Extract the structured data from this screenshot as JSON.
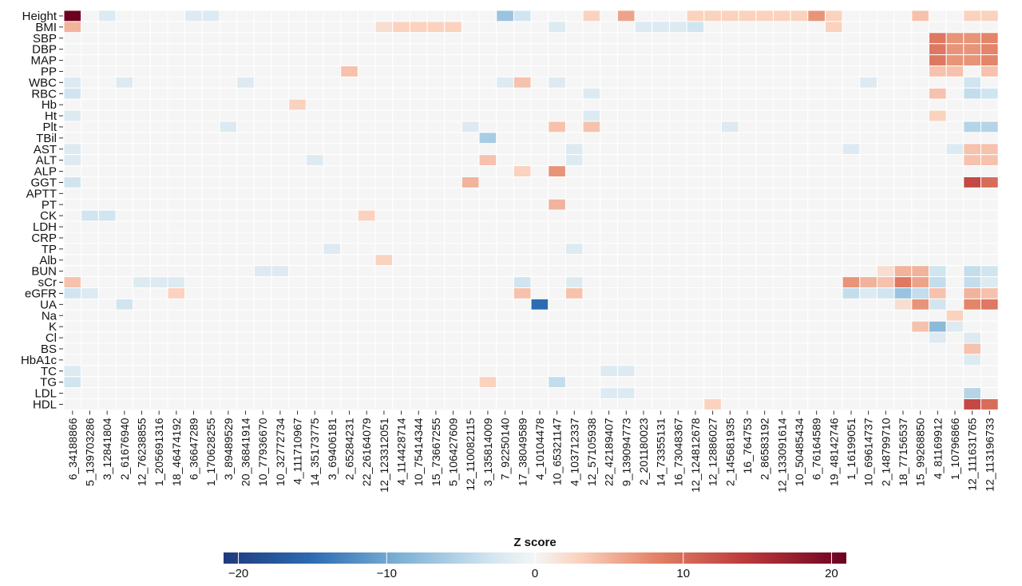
{
  "chart_data": {
    "type": "heatmap",
    "title": "",
    "rows": [
      "Height",
      "BMI",
      "SBP",
      "DBP",
      "MAP",
      "PP",
      "WBC",
      "RBC",
      "Hb",
      "Ht",
      "Plt",
      "TBil",
      "AST",
      "ALT",
      "ALP",
      "GGT",
      "APTT",
      "PT",
      "CK",
      "LDH",
      "CRP",
      "TP",
      "Alb",
      "BUN",
      "sCr",
      "eGFR",
      "UA",
      "Na",
      "K",
      "Cl",
      "BS",
      "HbA1c",
      "TC",
      "TG",
      "LDL",
      "HDL"
    ],
    "columns": [
      "6_34188866",
      "5_139703286",
      "3_12841804",
      "2_61676940",
      "12_76238855",
      "1_205691316",
      "18_46474192",
      "6_36647289",
      "1_170628255",
      "3_89489529",
      "20_36841914",
      "10_77936670",
      "10_32772734",
      "4_111710967",
      "14_35173775",
      "3_69406181",
      "2_65284231",
      "22_26164079",
      "12_123312051",
      "4_114428714",
      "10_75414344",
      "15_73667255",
      "5_106427609",
      "12_110082115",
      "3_135814009",
      "7_92250140",
      "17_38049589",
      "4_10104478",
      "10_65321147",
      "4_103712337",
      "12_57105938",
      "22_42189407",
      "9_139094773",
      "2_201180023",
      "14_73355131",
      "16_73048367",
      "12_124812678",
      "12_12886027",
      "2_145681935",
      "16_764753",
      "2_86583192",
      "12_133091614",
      "10_50485434",
      "6_76164589",
      "19_48142746",
      "1_16199051",
      "10_69614737",
      "2_148799710",
      "18_77156537",
      "15_99268850",
      "4_81169912",
      "1_10796866",
      "12_111631765",
      "12_113196733"
    ],
    "cells": [
      [
        0,
        0,
        21
      ],
      [
        0,
        2,
        -2
      ],
      [
        0,
        7,
        -2
      ],
      [
        0,
        8,
        -2
      ],
      [
        0,
        25,
        -7
      ],
      [
        0,
        26,
        -3
      ],
      [
        0,
        30,
        3
      ],
      [
        0,
        32,
        6
      ],
      [
        0,
        36,
        3
      ],
      [
        0,
        37,
        3
      ],
      [
        0,
        38,
        3
      ],
      [
        0,
        39,
        3
      ],
      [
        0,
        40,
        3
      ],
      [
        0,
        41,
        3
      ],
      [
        0,
        42,
        3
      ],
      [
        0,
        43,
        7
      ],
      [
        0,
        44,
        3
      ],
      [
        0,
        49,
        4
      ],
      [
        0,
        52,
        3
      ],
      [
        0,
        53,
        3
      ],
      [
        1,
        0,
        5
      ],
      [
        1,
        18,
        2
      ],
      [
        1,
        19,
        3
      ],
      [
        1,
        20,
        3
      ],
      [
        1,
        21,
        3
      ],
      [
        1,
        22,
        3
      ],
      [
        1,
        28,
        -2
      ],
      [
        1,
        33,
        -2
      ],
      [
        1,
        34,
        -2
      ],
      [
        1,
        35,
        -2
      ],
      [
        1,
        36,
        -3
      ],
      [
        1,
        44,
        3
      ],
      [
        2,
        50,
        9
      ],
      [
        2,
        51,
        7
      ],
      [
        2,
        52,
        7
      ],
      [
        2,
        53,
        8
      ],
      [
        3,
        50,
        9
      ],
      [
        3,
        51,
        7
      ],
      [
        3,
        52,
        7
      ],
      [
        3,
        53,
        8
      ],
      [
        4,
        50,
        9
      ],
      [
        4,
        51,
        7
      ],
      [
        4,
        52,
        7
      ],
      [
        4,
        53,
        8
      ],
      [
        5,
        16,
        4
      ],
      [
        5,
        50,
        4
      ],
      [
        5,
        51,
        4
      ],
      [
        5,
        53,
        4
      ],
      [
        6,
        0,
        -2
      ],
      [
        6,
        3,
        -2
      ],
      [
        6,
        10,
        -2
      ],
      [
        6,
        25,
        -2
      ],
      [
        6,
        26,
        4
      ],
      [
        6,
        28,
        -2
      ],
      [
        6,
        46,
        -2
      ],
      [
        6,
        52,
        -3
      ],
      [
        7,
        0,
        -3
      ],
      [
        7,
        30,
        -2
      ],
      [
        7,
        50,
        4
      ],
      [
        7,
        52,
        -4
      ],
      [
        7,
        53,
        -3
      ],
      [
        8,
        13,
        3
      ],
      [
        9,
        0,
        -2
      ],
      [
        9,
        30,
        -2
      ],
      [
        9,
        50,
        3
      ],
      [
        10,
        9,
        -2
      ],
      [
        10,
        23,
        -2
      ],
      [
        10,
        28,
        4
      ],
      [
        10,
        30,
        4
      ],
      [
        10,
        38,
        -2
      ],
      [
        10,
        52,
        -5
      ],
      [
        10,
        53,
        -5
      ],
      [
        11,
        24,
        -6
      ],
      [
        12,
        0,
        -2
      ],
      [
        12,
        29,
        -2
      ],
      [
        12,
        45,
        -2
      ],
      [
        12,
        51,
        -2
      ],
      [
        12,
        52,
        4
      ],
      [
        12,
        53,
        4
      ],
      [
        13,
        0,
        -2
      ],
      [
        13,
        14,
        -2
      ],
      [
        13,
        24,
        4
      ],
      [
        13,
        29,
        -2
      ],
      [
        13,
        52,
        4
      ],
      [
        13,
        53,
        4
      ],
      [
        14,
        26,
        3
      ],
      [
        14,
        28,
        7
      ],
      [
        15,
        0,
        -3
      ],
      [
        15,
        23,
        5
      ],
      [
        15,
        52,
        13
      ],
      [
        15,
        53,
        10
      ],
      [
        17,
        28,
        5
      ],
      [
        18,
        1,
        -3
      ],
      [
        18,
        2,
        -3
      ],
      [
        18,
        17,
        3
      ],
      [
        21,
        15,
        -2
      ],
      [
        21,
        29,
        -2
      ],
      [
        22,
        18,
        3
      ],
      [
        23,
        11,
        -2
      ],
      [
        23,
        12,
        -2
      ],
      [
        23,
        47,
        2
      ],
      [
        23,
        48,
        5
      ],
      [
        23,
        49,
        5
      ],
      [
        23,
        50,
        -3
      ],
      [
        23,
        52,
        -4
      ],
      [
        23,
        53,
        -3
      ],
      [
        24,
        0,
        4
      ],
      [
        24,
        4,
        -2
      ],
      [
        24,
        5,
        -2
      ],
      [
        24,
        6,
        -2
      ],
      [
        24,
        26,
        -3
      ],
      [
        24,
        29,
        -2
      ],
      [
        24,
        45,
        7
      ],
      [
        24,
        46,
        5
      ],
      [
        24,
        47,
        4
      ],
      [
        24,
        48,
        9
      ],
      [
        24,
        49,
        6
      ],
      [
        24,
        50,
        -4
      ],
      [
        24,
        52,
        -4
      ],
      [
        24,
        53,
        -2
      ],
      [
        25,
        0,
        -3
      ],
      [
        25,
        1,
        -2
      ],
      [
        25,
        6,
        3
      ],
      [
        25,
        26,
        4
      ],
      [
        25,
        29,
        4
      ],
      [
        25,
        45,
        -4
      ],
      [
        25,
        46,
        -2
      ],
      [
        25,
        47,
        -3
      ],
      [
        25,
        48,
        -7
      ],
      [
        25,
        49,
        -4
      ],
      [
        25,
        50,
        4
      ],
      [
        25,
        52,
        5
      ],
      [
        25,
        53,
        4
      ],
      [
        26,
        3,
        -3
      ],
      [
        26,
        27,
        -15
      ],
      [
        26,
        48,
        2
      ],
      [
        26,
        49,
        7
      ],
      [
        26,
        50,
        -3
      ],
      [
        26,
        52,
        8
      ],
      [
        26,
        53,
        9
      ],
      [
        27,
        51,
        3
      ],
      [
        28,
        49,
        4
      ],
      [
        28,
        50,
        -8
      ],
      [
        28,
        51,
        -2
      ],
      [
        29,
        50,
        -2
      ],
      [
        29,
        52,
        -2
      ],
      [
        30,
        52,
        4
      ],
      [
        31,
        52,
        -2
      ],
      [
        32,
        0,
        -2
      ],
      [
        32,
        31,
        -2
      ],
      [
        32,
        32,
        -2
      ],
      [
        33,
        0,
        -3
      ],
      [
        33,
        24,
        3
      ],
      [
        33,
        28,
        -4
      ],
      [
        34,
        31,
        -2
      ],
      [
        34,
        32,
        -2
      ],
      [
        34,
        52,
        -5
      ],
      [
        35,
        37,
        3
      ],
      [
        35,
        52,
        13
      ],
      [
        35,
        53,
        10
      ]
    ],
    "legend": {
      "title": "Z score",
      "ticks": [
        -20,
        -10,
        0,
        10,
        20
      ],
      "tick_labels": [
        "−20",
        "−10",
        "0",
        "10",
        "20"
      ],
      "range": [
        -21,
        21
      ]
    },
    "colorscale": {
      "negative_extreme": "#1f3a7c",
      "neutral": "#f5f5f5",
      "positive_extreme": "#6b0020",
      "empty_cell": "#f5f5f5"
    }
  }
}
